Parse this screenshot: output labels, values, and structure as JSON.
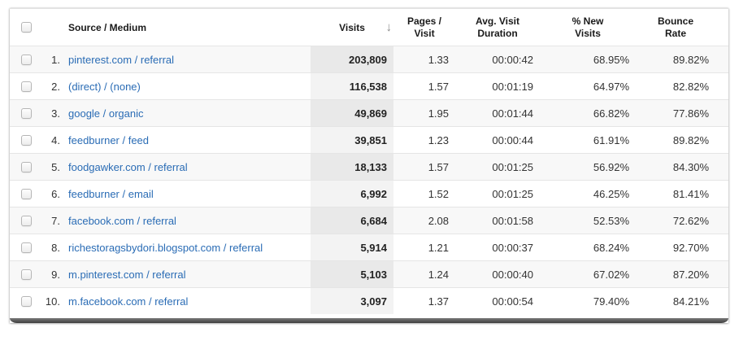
{
  "table": {
    "columns": {
      "source_medium": "Source / Medium",
      "visits": "Visits",
      "pages_per_visit": "Pages / Visit",
      "avg_visit_duration": "Avg. Visit Duration",
      "percent_new_visits": "% New Visits",
      "bounce_rate": "Bounce Rate"
    },
    "sort": {
      "column": "Visits",
      "direction": "descending",
      "icon": "↓"
    },
    "rows": [
      {
        "rank": "1.",
        "source_medium": "pinterest.com / referral",
        "visits": "203,809",
        "pages_per_visit": "1.33",
        "avg_visit_duration": "00:00:42",
        "percent_new_visits": "68.95%",
        "bounce_rate": "89.82%"
      },
      {
        "rank": "2.",
        "source_medium": "(direct) / (none)",
        "visits": "116,538",
        "pages_per_visit": "1.57",
        "avg_visit_duration": "00:01:19",
        "percent_new_visits": "64.97%",
        "bounce_rate": "82.82%"
      },
      {
        "rank": "3.",
        "source_medium": "google / organic",
        "visits": "49,869",
        "pages_per_visit": "1.95",
        "avg_visit_duration": "00:01:44",
        "percent_new_visits": "66.82%",
        "bounce_rate": "77.86%"
      },
      {
        "rank": "4.",
        "source_medium": "feedburner / feed",
        "visits": "39,851",
        "pages_per_visit": "1.23",
        "avg_visit_duration": "00:00:44",
        "percent_new_visits": "61.91%",
        "bounce_rate": "89.82%"
      },
      {
        "rank": "5.",
        "source_medium": "foodgawker.com / referral",
        "visits": "18,133",
        "pages_per_visit": "1.57",
        "avg_visit_duration": "00:01:25",
        "percent_new_visits": "56.92%",
        "bounce_rate": "84.30%"
      },
      {
        "rank": "6.",
        "source_medium": "feedburner / email",
        "visits": "6,992",
        "pages_per_visit": "1.52",
        "avg_visit_duration": "00:01:25",
        "percent_new_visits": "46.25%",
        "bounce_rate": "81.41%"
      },
      {
        "rank": "7.",
        "source_medium": "facebook.com / referral",
        "visits": "6,684",
        "pages_per_visit": "2.08",
        "avg_visit_duration": "00:01:58",
        "percent_new_visits": "52.53%",
        "bounce_rate": "72.62%"
      },
      {
        "rank": "8.",
        "source_medium": "richestoragsbydori.blogspot.com / referral",
        "visits": "5,914",
        "pages_per_visit": "1.21",
        "avg_visit_duration": "00:00:37",
        "percent_new_visits": "68.24%",
        "bounce_rate": "92.70%"
      },
      {
        "rank": "9.",
        "source_medium": "m.pinterest.com / referral",
        "visits": "5,103",
        "pages_per_visit": "1.24",
        "avg_visit_duration": "00:00:40",
        "percent_new_visits": "67.02%",
        "bounce_rate": "87.20%"
      },
      {
        "rank": "10.",
        "source_medium": "m.facebook.com / referral",
        "visits": "3,097",
        "pages_per_visit": "1.37",
        "avg_visit_duration": "00:00:54",
        "percent_new_visits": "79.40%",
        "bounce_rate": "84.21%"
      }
    ]
  },
  "colors": {
    "link_blue": "#2a6cb5",
    "sorted_column_bg_light": "#f3f3f3",
    "sorted_column_bg_dark": "#e9e9e9",
    "row_alt_bg": "#f8f8f8",
    "row_divider": "#e5e5e5",
    "bottom_edge_dark": "#3e3e3e"
  }
}
